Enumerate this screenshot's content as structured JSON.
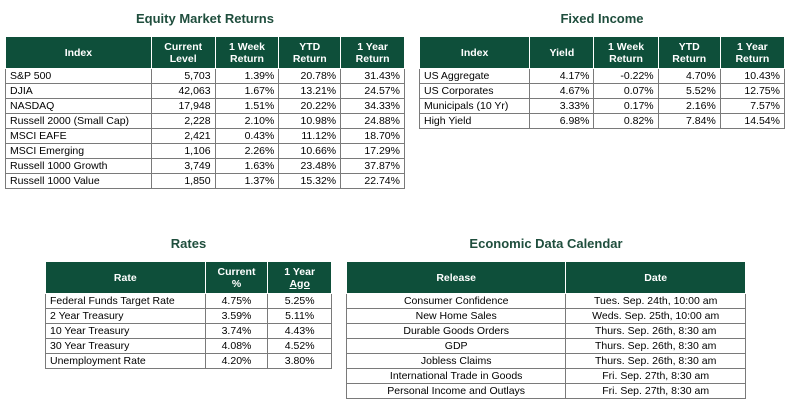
{
  "equity": {
    "title": "Equity Market Returns",
    "headers": [
      "Index",
      "Current Level",
      "1 Week Return",
      "YTD Return",
      "1 Year Return"
    ],
    "header_lines": [
      [
        "Index"
      ],
      [
        "Current",
        "Level"
      ],
      [
        "1 Week",
        "Return"
      ],
      [
        "YTD",
        "Return"
      ],
      [
        "1 Year",
        "Return"
      ]
    ],
    "rows": [
      [
        "S&P 500",
        "5,703",
        "1.39%",
        "20.78%",
        "31.43%"
      ],
      [
        "DJIA",
        "42,063",
        "1.67%",
        "13.21%",
        "24.57%"
      ],
      [
        "NASDAQ",
        "17,948",
        "1.51%",
        "20.22%",
        "34.33%"
      ],
      [
        "Russell 2000 (Small Cap)",
        "2,228",
        "2.10%",
        "10.98%",
        "24.88%"
      ],
      [
        "MSCI EAFE",
        "2,421",
        "0.43%",
        "11.12%",
        "18.70%"
      ],
      [
        "MSCI Emerging",
        "1,106",
        "2.26%",
        "10.66%",
        "17.29%"
      ],
      [
        "Russell 1000 Growth",
        "3,749",
        "1.63%",
        "23.48%",
        "37.87%"
      ],
      [
        "Russell 1000 Value",
        "1,850",
        "1.37%",
        "15.32%",
        "22.74%"
      ]
    ]
  },
  "fixed_income": {
    "title": "Fixed Income",
    "header_lines": [
      [
        "Index"
      ],
      [
        "Yield"
      ],
      [
        "1 Week",
        "Return"
      ],
      [
        "YTD",
        "Return"
      ],
      [
        "1 Year",
        "Return"
      ]
    ],
    "rows": [
      [
        "US Aggregate",
        "4.17%",
        "-0.22%",
        "4.70%",
        "10.43%"
      ],
      [
        "US Corporates",
        "4.67%",
        "0.07%",
        "5.52%",
        "12.75%"
      ],
      [
        "Municipals (10 Yr)",
        "3.33%",
        "0.17%",
        "2.16%",
        "7.57%"
      ],
      [
        "High Yield",
        "6.98%",
        "0.82%",
        "7.84%",
        "14.54%"
      ]
    ]
  },
  "rates": {
    "title": "Rates",
    "header_rate": "Rate",
    "header_current": [
      "Current",
      "%"
    ],
    "header_year": [
      "1 Year",
      "Ago"
    ],
    "rows": [
      [
        "Federal Funds Target Rate",
        "4.75%",
        "5.25%"
      ],
      [
        "2 Year Treasury",
        "3.59%",
        "5.11%"
      ],
      [
        "10 Year Treasury",
        "3.74%",
        "4.43%"
      ],
      [
        "30 Year Treasury",
        "4.08%",
        "4.52%"
      ],
      [
        "Unemployment Rate",
        "4.20%",
        "3.80%"
      ]
    ]
  },
  "calendar": {
    "title": "Economic Data Calendar",
    "headers": [
      "Release",
      "Date"
    ],
    "rows": [
      [
        "Consumer Confidence",
        "Tues. Sep. 24th, 10:00 am"
      ],
      [
        "New Home Sales",
        "Weds. Sep. 25th, 10:00 am"
      ],
      [
        "Durable Goods Orders",
        "Thurs. Sep. 26th, 8:30 am"
      ],
      [
        "GDP",
        "Thurs. Sep. 26th, 8:30 am"
      ],
      [
        "Jobless Claims",
        "Thurs. Sep. 26th, 8:30 am"
      ],
      [
        "International Trade in Goods",
        "Fri. Sep. 27th, 8:30 am"
      ],
      [
        "Personal Income and Outlays",
        "Fri. Sep. 27th, 8:30 am"
      ]
    ]
  }
}
